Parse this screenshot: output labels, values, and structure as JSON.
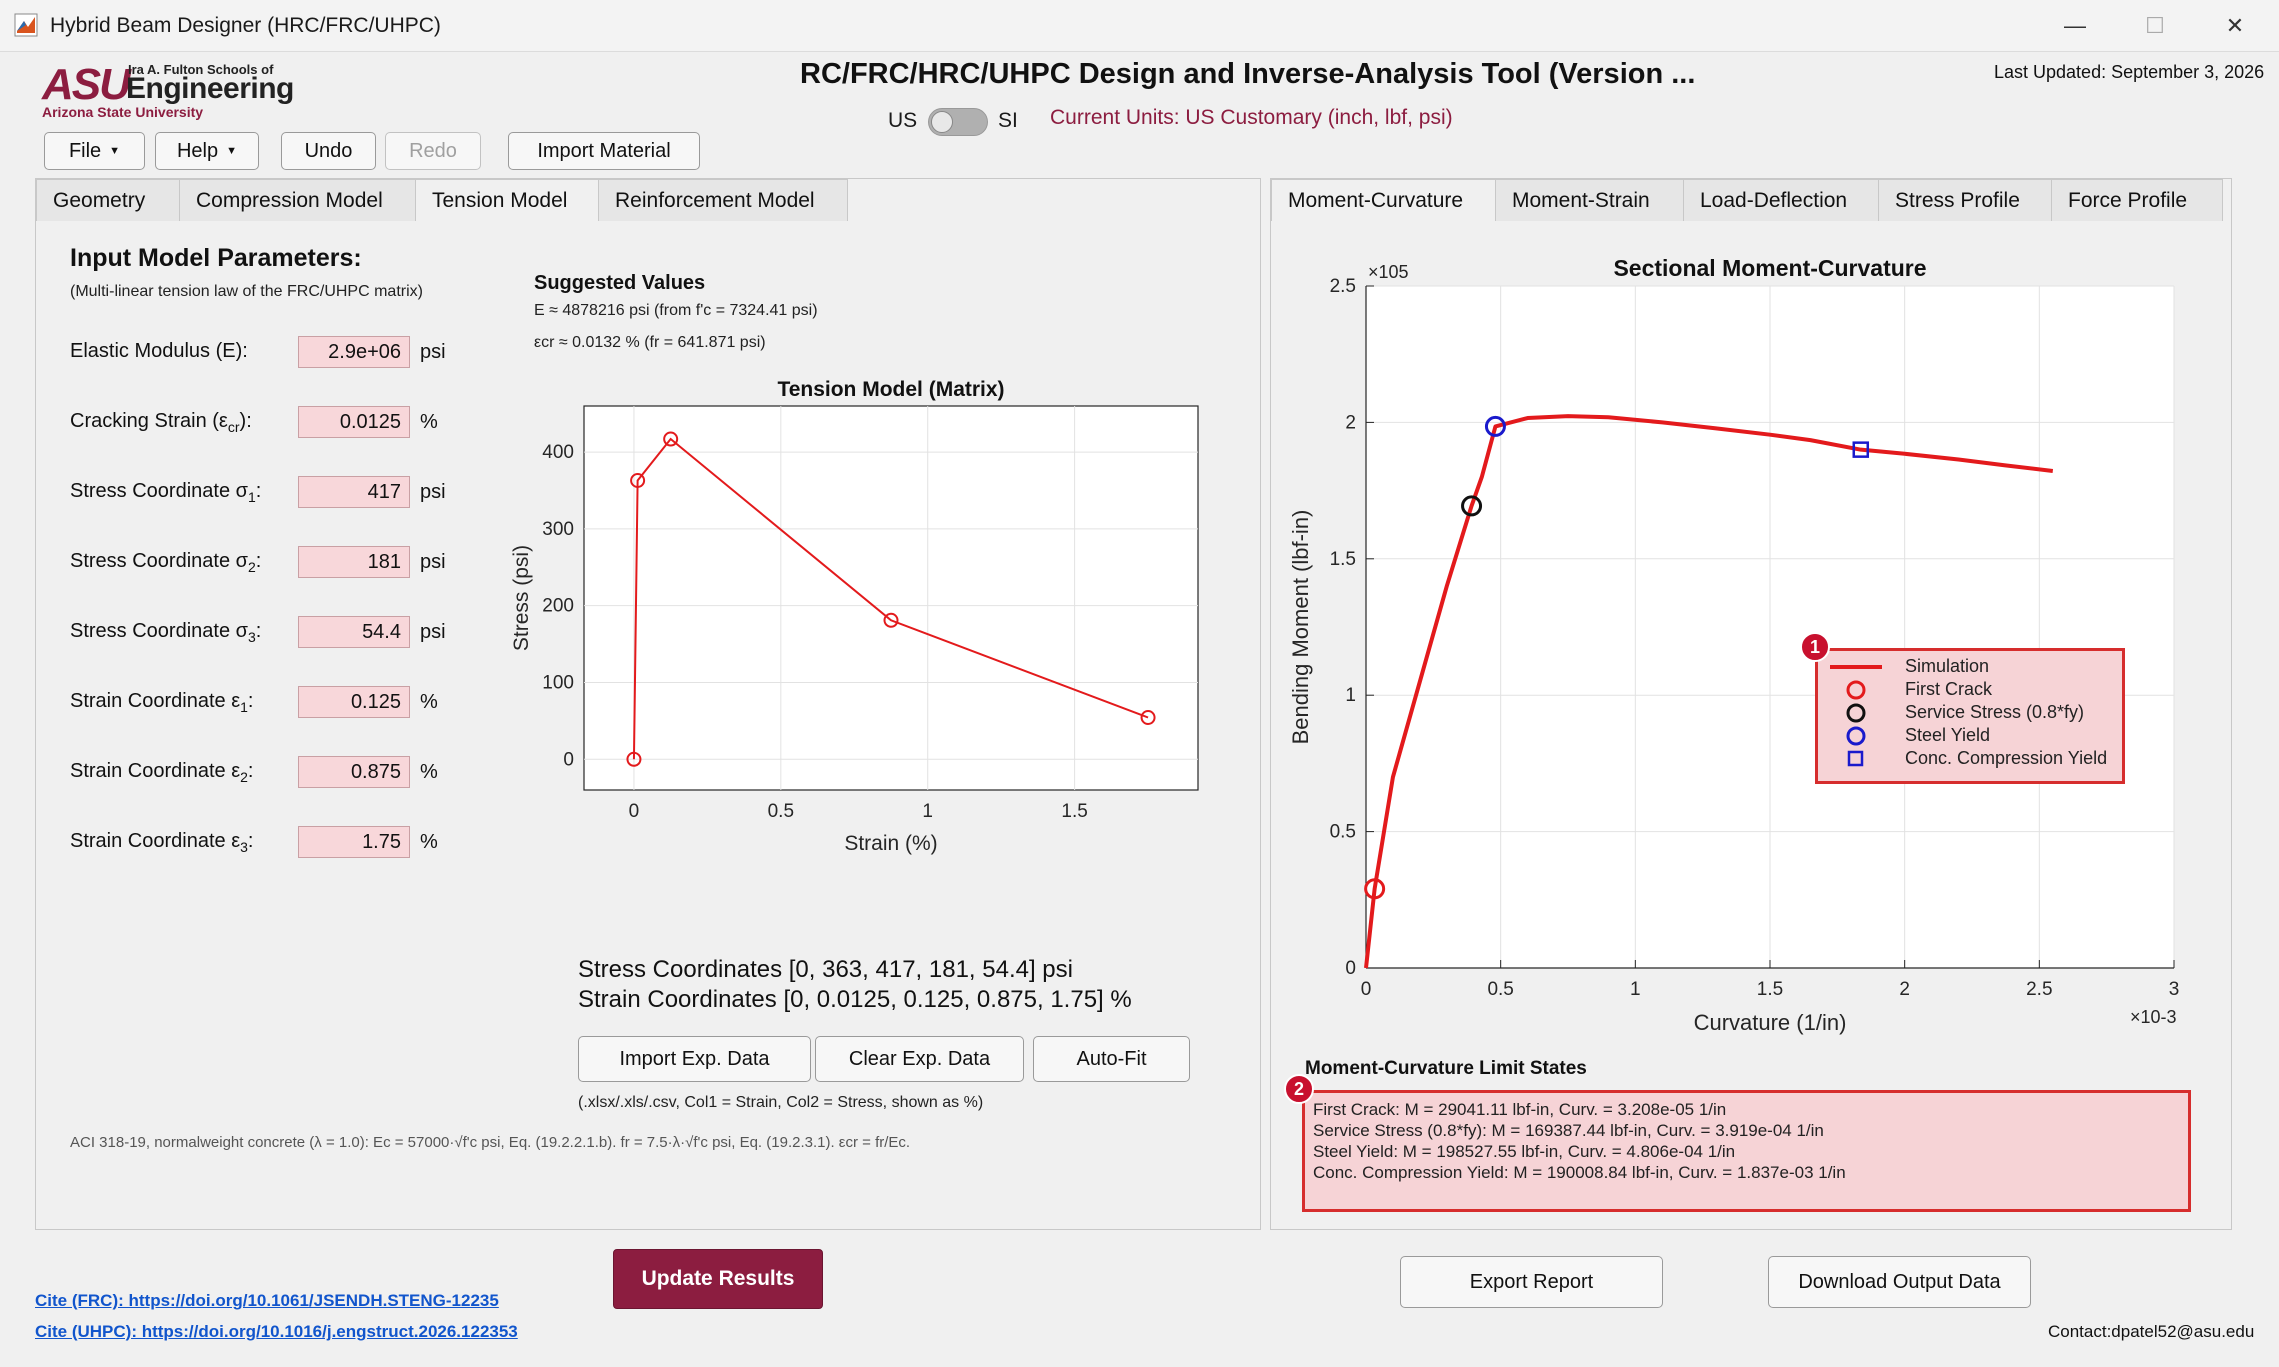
{
  "window": {
    "title": "Hybrid Beam Designer (HRC/FRC/UHPC)",
    "min": "—",
    "max": "☐",
    "close": "✕"
  },
  "logo": {
    "asu": "ASU",
    "fulton": "Ira A. Fulton Schools of",
    "engineering": "Engineering",
    "university": "Arizona State University"
  },
  "header": {
    "title": "RC/FRC/HRC/UHPC Design and Inverse-Analysis Tool (Version ...",
    "last_updated": "Last Updated: September 3, 2026",
    "us": "US",
    "si": "SI",
    "current_units": "Current Units: US Customary (inch, lbf, psi)"
  },
  "toolbar": {
    "file": "File",
    "help": "Help",
    "undo": "Undo",
    "redo": "Redo",
    "import_material": "Import Material"
  },
  "left_tabs": [
    "Geometry",
    "Compression Model",
    "Tension Model",
    "Reinforcement Model"
  ],
  "right_tabs": [
    "Moment-Curvature",
    "Moment-Strain",
    "Load-Deflection",
    "Stress Profile",
    "Force Profile"
  ],
  "input": {
    "heading": "Input Model Parameters:",
    "subheading": "(Multi-linear tension law of the FRC/UHPC matrix)",
    "rows": [
      {
        "label": "Elastic Modulus (E):",
        "value": "2.9e+06",
        "unit": "psi"
      },
      {
        "label": "Cracking Strain (ε",
        "sub": "cr",
        "tail": "):",
        "value": "0.0125",
        "unit": "%"
      },
      {
        "label": "Stress Coordinate σ",
        "sub": "1",
        "tail": ":",
        "value": "417",
        "unit": "psi"
      },
      {
        "label": "Stress Coordinate σ",
        "sub": "2",
        "tail": ":",
        "value": "181",
        "unit": "psi"
      },
      {
        "label": "Stress Coordinate σ",
        "sub": "3",
        "tail": ":",
        "value": "54.4",
        "unit": "psi"
      },
      {
        "label": "Strain Coordinate ε",
        "sub": "1",
        "tail": ":",
        "value": "0.125",
        "unit": "%"
      },
      {
        "label": "Strain Coordinate ε",
        "sub": "2",
        "tail": ":",
        "value": "0.875",
        "unit": "%"
      },
      {
        "label": "Strain Coordinate ε",
        "sub": "3",
        "tail": ":",
        "value": "1.75",
        "unit": "%"
      }
    ]
  },
  "suggested": {
    "heading": "Suggested Values",
    "line1": "E ≈ 4878216 psi  (from f'c = 7324.41 psi)",
    "line2": "εcr ≈ 0.0132 %  (fr = 641.871 psi)"
  },
  "coords": {
    "stress": "Stress Coordinates [0, 363, 417, 181, 54.4] psi",
    "strain": "Strain Coordinates [0, 0.0125, 0.125, 0.875, 1.75] %"
  },
  "exp_buttons": {
    "import": "Import Exp. Data",
    "clear": "Clear Exp. Data",
    "autofit": "Auto-Fit",
    "hint": "(.xlsx/.xls/.csv, Col1 = Strain, Col2 = Stress, shown as %)"
  },
  "footnote": "ACI 318-19, normalweight concrete (λ = 1.0): Ec = 57000·√f'c psi, Eq. (19.2.2.1.b). fr = 7.5·λ·√f'c psi, Eq. (19.2.3.1). εcr = fr/Ec.",
  "links": {
    "frc": "Cite (FRC): https://doi.org/10.1061/JSENDH.STENG-12235",
    "uhpc": "Cite (UHPC): https://doi.org/10.1016/j.engstruct.2026.122353"
  },
  "update_button": "Update Results",
  "export_button": "Export Report",
  "download_button": "Download Output Data",
  "contact": "Contact:dpatel52@asu.edu",
  "limit_states": {
    "heading": "Moment-Curvature Limit States",
    "badge1": "1",
    "badge2": "2",
    "lines": [
      "First Crack: M = 29041.11 lbf-in, Curv. = 3.208e-05 1/in",
      "Service Stress (0.8*fy): M = 169387.44 lbf-in, Curv. = 3.919e-04 1/in",
      "Steel Yield: M = 198527.55 lbf-in, Curv. = 4.806e-04 1/in",
      "Conc. Compression Yield: M = 190008.84 lbf-in, Curv. = 1.837e-03 1/in"
    ]
  },
  "colors": {
    "accent": "#8c1d40",
    "red": "#e31a1c",
    "blue": "#1a1acc",
    "field_bg": "#f8d7da"
  },
  "chart_data": [
    {
      "type": "line",
      "title": "Tension Model (Matrix)",
      "xlabel": "Strain (%)",
      "ylabel": "Stress (psi)",
      "xlim": [
        -0.17,
        1.92
      ],
      "ylim": [
        -40,
        460
      ],
      "xticks": [
        "0",
        "0.5",
        "1",
        "1.5"
      ],
      "xtick_values": [
        0,
        0.5,
        1,
        1.5
      ],
      "yticks": [
        "0",
        "100",
        "200",
        "300",
        "400"
      ],
      "ytick_values": [
        0,
        100,
        200,
        300,
        400
      ],
      "grid": true,
      "series": [
        {
          "x": [
            0,
            0.0125,
            0.125,
            0.875,
            1.75
          ],
          "y": [
            0,
            363,
            417,
            181,
            54.4
          ],
          "marker": "circle"
        }
      ]
    },
    {
      "type": "line",
      "title": "Sectional Moment-Curvature",
      "xlabel": "Curvature (1/in)",
      "ylabel": "Bending Moment (lbf-in)",
      "x_multiplier": "×10-3",
      "y_multiplier": "×105",
      "xlim": [
        0,
        0.003
      ],
      "ylim": [
        0,
        250000
      ],
      "xticks": [
        "0",
        "0.5",
        "1",
        "1.5",
        "2",
        "2.5",
        "3"
      ],
      "xtick_values": [
        0,
        0.0005,
        0.001,
        0.0015,
        0.002,
        0.0025,
        0.003
      ],
      "yticks": [
        "0",
        "0.5",
        "1",
        "1.5",
        "2",
        "2.5"
      ],
      "ytick_values": [
        0,
        50000,
        100000,
        150000,
        200000,
        250000
      ],
      "grid": true,
      "legend_position": "right",
      "series": [
        {
          "name": "Simulation",
          "x": [
            0,
            3.208e-05,
            0.0001,
            0.0002,
            0.0003,
            0.0003919,
            0.00043,
            0.0004806,
            0.0006,
            0.00075,
            0.0009,
            0.0011,
            0.0013,
            0.0015,
            0.00165,
            0.001837,
            0.002,
            0.0022,
            0.00237,
            0.00255
          ],
          "y": [
            0,
            29041,
            70000,
            105000,
            140000,
            169387,
            180000,
            198528,
            201600,
            202300,
            201900,
            200000,
            197800,
            195500,
            193500,
            190009,
            188500,
            186400,
            184300,
            182200
          ]
        },
        {
          "name": "First Crack",
          "x": [
            3.208e-05
          ],
          "y": [
            29041
          ]
        },
        {
          "name": "Service Stress (0.8*fy)",
          "x": [
            0.0003919
          ],
          "y": [
            169387
          ]
        },
        {
          "name": "Steel Yield",
          "x": [
            0.0004806
          ],
          "y": [
            198528
          ]
        },
        {
          "name": "Conc. Compression Yield",
          "x": [
            0.001837
          ],
          "y": [
            190009
          ]
        }
      ]
    }
  ]
}
